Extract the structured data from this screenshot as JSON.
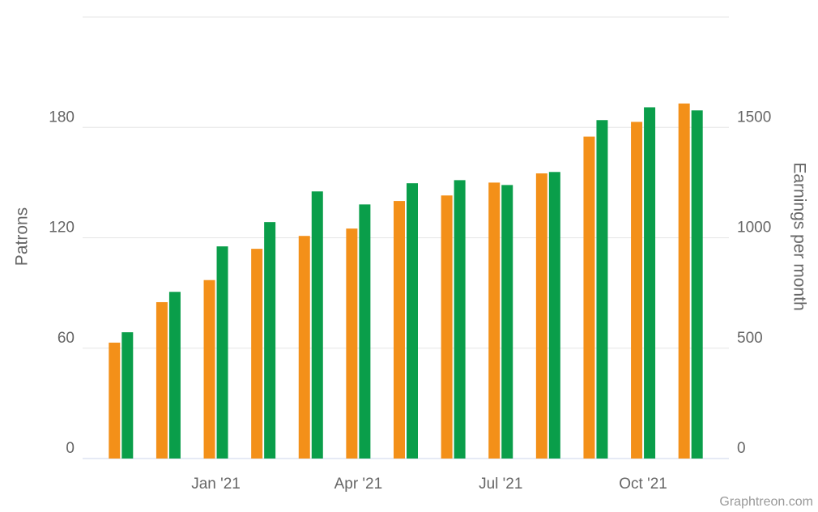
{
  "chart_data": {
    "type": "bar",
    "categories": [
      null,
      null,
      "Jan '21",
      null,
      null,
      "Apr '21",
      null,
      null,
      "Jul '21",
      null,
      null,
      "Oct '21",
      null
    ],
    "series": [
      {
        "name": "Patrons",
        "color": "#f39019",
        "values": [
          63,
          85,
          97,
          114,
          121,
          125,
          140,
          143,
          150,
          155,
          175,
          183,
          193
        ]
      },
      {
        "name": "Earnings per month",
        "color": "#0a9e4a",
        "axis": "y2",
        "values": [
          572,
          755,
          961,
          1071,
          1210,
          1151,
          1247,
          1261,
          1239,
          1298,
          1533,
          1591,
          1577
        ]
      }
    ],
    "ylabel": "Patrons",
    "y2label": "Earnings per month",
    "ylim": [
      0,
      240
    ],
    "yticks": [
      0,
      60,
      120,
      180
    ],
    "y2lim": [
      0,
      2000
    ],
    "y2ticks": [
      0,
      500,
      1000,
      1500
    ],
    "grid": true,
    "source": "Graphtreon.com"
  }
}
